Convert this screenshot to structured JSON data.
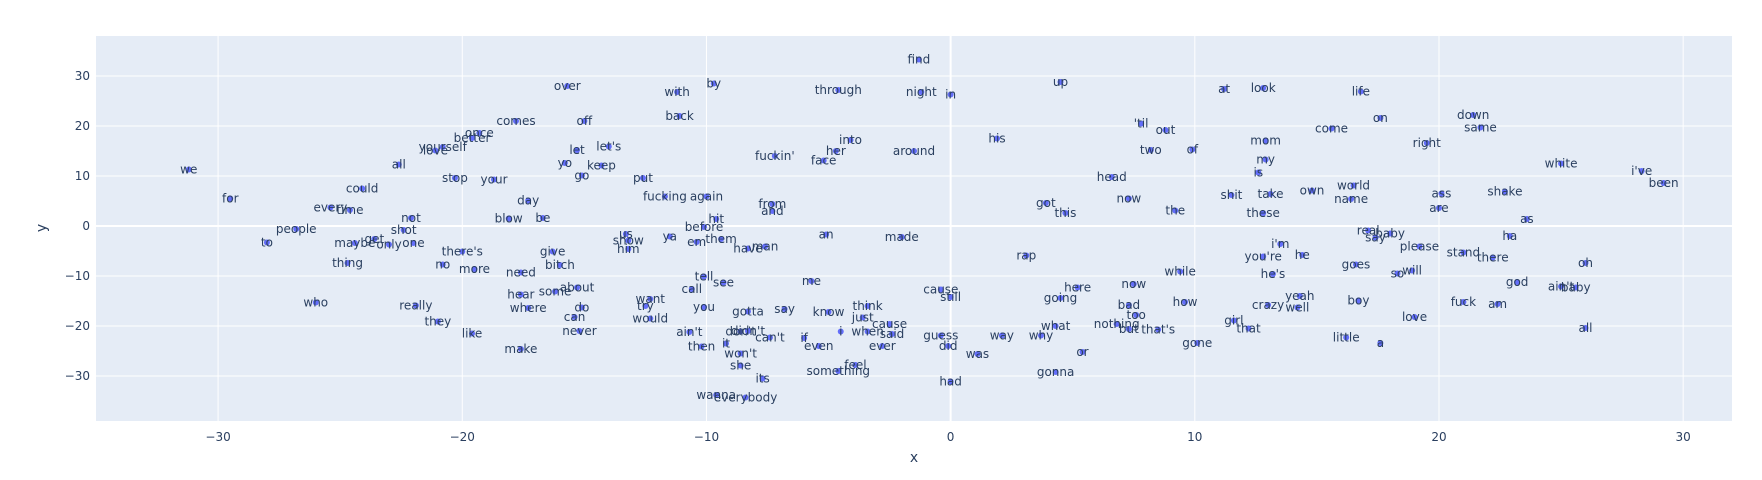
{
  "chart_data": {
    "type": "scatter",
    "xlabel": "x",
    "ylabel": "y",
    "xlim": [
      -35,
      32
    ],
    "ylim": [
      -39,
      38
    ],
    "xticks": [
      -30,
      -20,
      -10,
      0,
      10,
      20,
      30
    ],
    "yticks": [
      -30,
      -20,
      -10,
      0,
      10,
      20,
      30
    ],
    "grid": true,
    "colors": {
      "plot_bg": "#e5ecf6",
      "grid": "#ffffff",
      "marker": "#636efa",
      "text": "#2a3f5f"
    },
    "points": [
      {
        "x": -1.3,
        "y": 33.3,
        "label": "find"
      },
      {
        "x": -15.7,
        "y": 28.0,
        "label": "over"
      },
      {
        "x": -11.2,
        "y": 26.8,
        "label": "with"
      },
      {
        "x": -9.7,
        "y": 28.5,
        "label": "by"
      },
      {
        "x": -4.6,
        "y": 27.2,
        "label": "through"
      },
      {
        "x": -1.2,
        "y": 26.8,
        "label": "night"
      },
      {
        "x": 0.0,
        "y": 26.3,
        "label": "in"
      },
      {
        "x": 4.5,
        "y": 28.8,
        "label": "up"
      },
      {
        "x": 11.2,
        "y": 27.4,
        "label": "at"
      },
      {
        "x": 12.8,
        "y": 27.6,
        "label": "look"
      },
      {
        "x": 16.8,
        "y": 26.9,
        "label": "life"
      },
      {
        "x": -11.1,
        "y": 22.0,
        "label": "back"
      },
      {
        "x": -17.8,
        "y": 21.0,
        "label": "comes"
      },
      {
        "x": -15.0,
        "y": 21.0,
        "label": "off"
      },
      {
        "x": 7.8,
        "y": 20.5,
        "label": "'til"
      },
      {
        "x": 8.8,
        "y": 19.2,
        "label": "out"
      },
      {
        "x": 17.6,
        "y": 21.6,
        "label": "on"
      },
      {
        "x": 21.4,
        "y": 22.2,
        "label": "down"
      },
      {
        "x": 15.6,
        "y": 19.5,
        "label": "come"
      },
      {
        "x": 21.7,
        "y": 19.7,
        "label": "same"
      },
      {
        "x": -19.3,
        "y": 18.6,
        "label": "once"
      },
      {
        "x": -19.6,
        "y": 17.6,
        "label": "better"
      },
      {
        "x": -20.8,
        "y": 15.8,
        "label": "yourself"
      },
      {
        "x": -21.1,
        "y": 15.1,
        "label": "love"
      },
      {
        "x": -15.3,
        "y": 15.2,
        "label": "let"
      },
      {
        "x": -14.0,
        "y": 15.9,
        "label": "let's"
      },
      {
        "x": -4.1,
        "y": 17.2,
        "label": "into"
      },
      {
        "x": 1.9,
        "y": 17.5,
        "label": "his"
      },
      {
        "x": 12.9,
        "y": 17.1,
        "label": "mom"
      },
      {
        "x": 19.5,
        "y": 16.6,
        "label": "right"
      },
      {
        "x": -4.7,
        "y": 15.0,
        "label": "her"
      },
      {
        "x": -7.2,
        "y": 14.0,
        "label": "fuckin'"
      },
      {
        "x": -5.2,
        "y": 13.1,
        "label": "face"
      },
      {
        "x": -1.5,
        "y": 15.0,
        "label": "around"
      },
      {
        "x": 8.2,
        "y": 15.2,
        "label": "two"
      },
      {
        "x": 9.9,
        "y": 15.3,
        "label": "of"
      },
      {
        "x": -15.8,
        "y": 12.6,
        "label": "yo"
      },
      {
        "x": -14.3,
        "y": 12.1,
        "label": "keep"
      },
      {
        "x": -31.2,
        "y": 11.3,
        "label": "we"
      },
      {
        "x": -22.6,
        "y": 12.3,
        "label": "all"
      },
      {
        "x": 12.9,
        "y": 13.3,
        "label": "my"
      },
      {
        "x": 12.6,
        "y": 10.7,
        "label": "is"
      },
      {
        "x": 25.0,
        "y": 12.5,
        "label": "white"
      },
      {
        "x": 28.3,
        "y": 11.0,
        "label": "i've"
      },
      {
        "x": -15.1,
        "y": 10.1,
        "label": "go"
      },
      {
        "x": -12.6,
        "y": 9.6,
        "label": "put"
      },
      {
        "x": -20.3,
        "y": 9.6,
        "label": "stop"
      },
      {
        "x": -18.7,
        "y": 9.3,
        "label": "your"
      },
      {
        "x": 6.6,
        "y": 9.8,
        "label": "head"
      },
      {
        "x": 29.2,
        "y": 8.6,
        "label": "been"
      },
      {
        "x": -24.1,
        "y": 7.5,
        "label": "could"
      },
      {
        "x": 16.5,
        "y": 8.1,
        "label": "world"
      },
      {
        "x": 14.8,
        "y": 7.1,
        "label": "own"
      },
      {
        "x": 13.1,
        "y": 6.4,
        "label": "take"
      },
      {
        "x": 11.5,
        "y": 6.2,
        "label": "shit"
      },
      {
        "x": 22.7,
        "y": 6.9,
        "label": "shake"
      },
      {
        "x": 20.1,
        "y": 6.5,
        "label": "ass"
      },
      {
        "x": -29.5,
        "y": 5.5,
        "label": "for"
      },
      {
        "x": -10.0,
        "y": 5.9,
        "label": "again"
      },
      {
        "x": -11.7,
        "y": 5.9,
        "label": "fucking"
      },
      {
        "x": -17.3,
        "y": 5.1,
        "label": "day"
      },
      {
        "x": 7.3,
        "y": 5.5,
        "label": "now"
      },
      {
        "x": 16.4,
        "y": 5.4,
        "label": "name"
      },
      {
        "x": -7.3,
        "y": 4.4,
        "label": "from"
      },
      {
        "x": -7.3,
        "y": 3.0,
        "label": "and"
      },
      {
        "x": 3.9,
        "y": 4.6,
        "label": "got"
      },
      {
        "x": 4.7,
        "y": 2.6,
        "label": "this"
      },
      {
        "x": 9.2,
        "y": 3.1,
        "label": "the"
      },
      {
        "x": 12.8,
        "y": 2.6,
        "label": "these"
      },
      {
        "x": 20.0,
        "y": 3.6,
        "label": "are"
      },
      {
        "x": -25.4,
        "y": 3.7,
        "label": "every"
      },
      {
        "x": -24.6,
        "y": 3.2,
        "label": "time"
      },
      {
        "x": -22.1,
        "y": 1.6,
        "label": "not"
      },
      {
        "x": -18.1,
        "y": 1.5,
        "label": "blow"
      },
      {
        "x": -16.7,
        "y": 1.6,
        "label": "be"
      },
      {
        "x": -9.6,
        "y": 1.4,
        "label": "hit"
      },
      {
        "x": 23.6,
        "y": 1.4,
        "label": "as"
      },
      {
        "x": -26.8,
        "y": -0.6,
        "label": "people"
      },
      {
        "x": -22.4,
        "y": -0.8,
        "label": "shot"
      },
      {
        "x": -10.1,
        "y": -0.2,
        "label": "before"
      },
      {
        "x": -13.3,
        "y": -1.6,
        "label": "us"
      },
      {
        "x": -11.5,
        "y": -2.1,
        "label": "ya"
      },
      {
        "x": -10.4,
        "y": -3.2,
        "label": "em"
      },
      {
        "x": -5.1,
        "y": -1.7,
        "label": "an"
      },
      {
        "x": -2.0,
        "y": -2.2,
        "label": "made"
      },
      {
        "x": 17.1,
        "y": -0.9,
        "label": "real"
      },
      {
        "x": 18.0,
        "y": -1.5,
        "label": "baby"
      },
      {
        "x": 17.4,
        "y": -2.3,
        "label": "say"
      },
      {
        "x": 22.9,
        "y": -2.0,
        "label": "ha"
      },
      {
        "x": -28.0,
        "y": -3.3,
        "label": "to"
      },
      {
        "x": -23.6,
        "y": -2.6,
        "label": "get"
      },
      {
        "x": -24.4,
        "y": -3.4,
        "label": "maybe"
      },
      {
        "x": -23.0,
        "y": -3.7,
        "label": "only"
      },
      {
        "x": -22.0,
        "y": -3.4,
        "label": "one"
      },
      {
        "x": -13.2,
        "y": -2.9,
        "label": "show"
      },
      {
        "x": -9.4,
        "y": -2.6,
        "label": "them"
      },
      {
        "x": -13.2,
        "y": -4.6,
        "label": "him"
      },
      {
        "x": -8.3,
        "y": -4.5,
        "label": "have"
      },
      {
        "x": -7.6,
        "y": -4.1,
        "label": "man"
      },
      {
        "x": 13.5,
        "y": -3.6,
        "label": "i'm"
      },
      {
        "x": 19.2,
        "y": -4.1,
        "label": "please"
      },
      {
        "x": -20.0,
        "y": -5.1,
        "label": "there's"
      },
      {
        "x": -16.3,
        "y": -5.1,
        "label": "give"
      },
      {
        "x": 3.1,
        "y": -5.9,
        "label": "rap"
      },
      {
        "x": 12.8,
        "y": -6.1,
        "label": "you're"
      },
      {
        "x": 14.4,
        "y": -5.8,
        "label": "he"
      },
      {
        "x": 21.0,
        "y": -5.3,
        "label": "stand"
      },
      {
        "x": 22.2,
        "y": -6.3,
        "label": "there"
      },
      {
        "x": -24.7,
        "y": -7.4,
        "label": "thing"
      },
      {
        "x": -20.8,
        "y": -7.7,
        "label": "no"
      },
      {
        "x": -19.5,
        "y": -8.6,
        "label": "more"
      },
      {
        "x": -16.0,
        "y": -7.8,
        "label": "bitch"
      },
      {
        "x": -17.6,
        "y": -9.3,
        "label": "need"
      },
      {
        "x": 16.6,
        "y": -7.7,
        "label": "goes"
      },
      {
        "x": 26.0,
        "y": -7.4,
        "label": "oh"
      },
      {
        "x": 9.4,
        "y": -9.1,
        "label": "while"
      },
      {
        "x": 18.3,
        "y": -9.5,
        "label": "so"
      },
      {
        "x": 18.9,
        "y": -8.9,
        "label": "will"
      },
      {
        "x": 13.2,
        "y": -9.6,
        "label": "he's"
      },
      {
        "x": -10.1,
        "y": -10.1,
        "label": "tell"
      },
      {
        "x": -9.3,
        "y": -11.3,
        "label": "see"
      },
      {
        "x": -5.7,
        "y": -11.0,
        "label": "me"
      },
      {
        "x": 7.5,
        "y": -11.6,
        "label": "now"
      },
      {
        "x": 23.2,
        "y": -11.2,
        "label": "god"
      },
      {
        "x": -15.3,
        "y": -12.3,
        "label": "about"
      },
      {
        "x": -16.2,
        "y": -13.1,
        "label": "some"
      },
      {
        "x": -10.6,
        "y": -12.6,
        "label": "call"
      },
      {
        "x": -0.4,
        "y": -12.7,
        "label": "cause"
      },
      {
        "x": 5.2,
        "y": -12.3,
        "label": "here"
      },
      {
        "x": 25.0,
        "y": -12.1,
        "label": "ain't"
      },
      {
        "x": 25.6,
        "y": -12.3,
        "label": "baby"
      },
      {
        "x": -17.6,
        "y": -13.7,
        "label": "hear"
      },
      {
        "x": 0.0,
        "y": -14.2,
        "label": "still"
      },
      {
        "x": 4.5,
        "y": -14.4,
        "label": "going"
      },
      {
        "x": 14.3,
        "y": -14.0,
        "label": "yeah"
      },
      {
        "x": 16.7,
        "y": -14.9,
        "label": "boy"
      },
      {
        "x": -26.0,
        "y": -15.3,
        "label": "who"
      },
      {
        "x": -21.9,
        "y": -15.9,
        "label": "really"
      },
      {
        "x": -12.3,
        "y": -14.6,
        "label": "want"
      },
      {
        "x": -12.5,
        "y": -16.0,
        "label": "try"
      },
      {
        "x": -15.1,
        "y": -16.3,
        "label": "do"
      },
      {
        "x": -3.4,
        "y": -16.0,
        "label": "think"
      },
      {
        "x": 7.3,
        "y": -15.8,
        "label": "bad"
      },
      {
        "x": 9.6,
        "y": -15.2,
        "label": "how"
      },
      {
        "x": 13.0,
        "y": -15.8,
        "label": "crazy"
      },
      {
        "x": 14.2,
        "y": -16.3,
        "label": "well"
      },
      {
        "x": 21.0,
        "y": -15.2,
        "label": "fuck"
      },
      {
        "x": 22.4,
        "y": -15.6,
        "label": "am"
      },
      {
        "x": -17.3,
        "y": -16.4,
        "label": "where"
      },
      {
        "x": -10.1,
        "y": -16.2,
        "label": "you"
      },
      {
        "x": -8.3,
        "y": -17.1,
        "label": "gotta"
      },
      {
        "x": -6.8,
        "y": -16.6,
        "label": "say"
      },
      {
        "x": -5.0,
        "y": -17.2,
        "label": "know"
      },
      {
        "x": 7.6,
        "y": -17.8,
        "label": "too"
      },
      {
        "x": -15.4,
        "y": -18.2,
        "label": "can"
      },
      {
        "x": -12.3,
        "y": -18.5,
        "label": "would"
      },
      {
        "x": -3.6,
        "y": -18.3,
        "label": "just"
      },
      {
        "x": -2.5,
        "y": -19.6,
        "label": "cause"
      },
      {
        "x": 19.0,
        "y": -18.2,
        "label": "love"
      },
      {
        "x": -21.0,
        "y": -19.1,
        "label": "they"
      },
      {
        "x": 4.3,
        "y": -20.0,
        "label": "what"
      },
      {
        "x": 6.8,
        "y": -19.6,
        "label": "nothing"
      },
      {
        "x": 7.3,
        "y": -20.6,
        "label": "but"
      },
      {
        "x": 8.5,
        "y": -20.7,
        "label": "that's"
      },
      {
        "x": 11.6,
        "y": -18.9,
        "label": "girl"
      },
      {
        "x": 12.2,
        "y": -20.5,
        "label": "that"
      },
      {
        "x": 26.0,
        "y": -20.4,
        "label": "all"
      },
      {
        "x": -19.6,
        "y": -21.5,
        "label": "like"
      },
      {
        "x": -15.2,
        "y": -21.0,
        "label": "never"
      },
      {
        "x": -10.7,
        "y": -21.2,
        "label": "ain't"
      },
      {
        "x": -8.6,
        "y": -21.1,
        "label": "don't"
      },
      {
        "x": -8.3,
        "y": -21.0,
        "label": "didn't"
      },
      {
        "x": -4.5,
        "y": -21.1,
        "label": "i"
      },
      {
        "x": -3.4,
        "y": -21.1,
        "label": "when"
      },
      {
        "x": -2.4,
        "y": -21.6,
        "label": "said"
      },
      {
        "x": -0.4,
        "y": -21.9,
        "label": "guess"
      },
      {
        "x": 2.1,
        "y": -21.9,
        "label": "way"
      },
      {
        "x": 3.7,
        "y": -21.9,
        "label": "why"
      },
      {
        "x": -7.4,
        "y": -22.3,
        "label": "can't"
      },
      {
        "x": -6.0,
        "y": -22.4,
        "label": "if"
      },
      {
        "x": 16.2,
        "y": -22.3,
        "label": "little"
      },
      {
        "x": -9.2,
        "y": -23.5,
        "label": "it"
      },
      {
        "x": -10.2,
        "y": -24.1,
        "label": "then"
      },
      {
        "x": -5.4,
        "y": -24.0,
        "label": "even"
      },
      {
        "x": -2.8,
        "y": -24.0,
        "label": "ever"
      },
      {
        "x": -0.1,
        "y": -24.0,
        "label": "did"
      },
      {
        "x": 10.1,
        "y": -23.4,
        "label": "gone"
      },
      {
        "x": 17.6,
        "y": -23.4,
        "label": "a"
      },
      {
        "x": -17.6,
        "y": -24.6,
        "label": "make"
      },
      {
        "x": -8.6,
        "y": -25.5,
        "label": "won't"
      },
      {
        "x": 1.1,
        "y": -25.6,
        "label": "was"
      },
      {
        "x": 5.4,
        "y": -25.2,
        "label": "or"
      },
      {
        "x": -8.6,
        "y": -27.9,
        "label": "she"
      },
      {
        "x": -3.9,
        "y": -27.8,
        "label": "feel"
      },
      {
        "x": -4.6,
        "y": -29.0,
        "label": "something"
      },
      {
        "x": 4.3,
        "y": -29.2,
        "label": "gonna"
      },
      {
        "x": -7.7,
        "y": -30.5,
        "label": "its"
      },
      {
        "x": 0.0,
        "y": -31.1,
        "label": "had"
      },
      {
        "x": -9.6,
        "y": -33.8,
        "label": "wanna"
      },
      {
        "x": -8.4,
        "y": -34.3,
        "label": "everybody"
      }
    ]
  }
}
